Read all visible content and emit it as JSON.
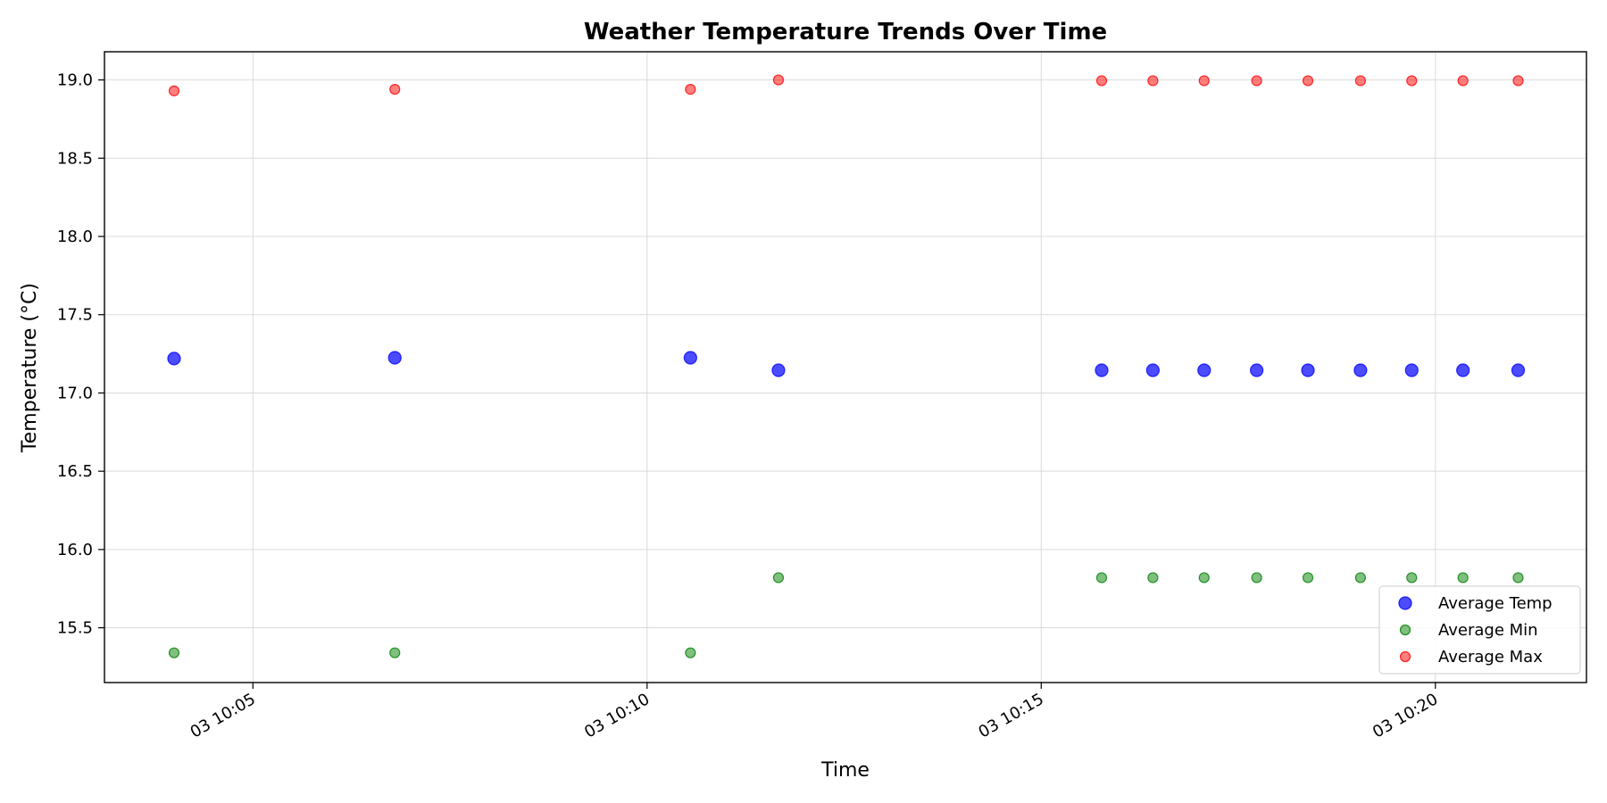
{
  "chart_data": {
    "type": "scatter",
    "title": "Weather Temperature Trends Over Time",
    "xlabel": "Time",
    "ylabel": "Temperature (°C)",
    "x_axis_type": "time",
    "xlim": [
      "2024-01-03T10:03:07",
      "2024-01-03T10:21:55"
    ],
    "ylim": [
      15.15,
      19.18
    ],
    "grid": true,
    "legend_position": "lower right",
    "x_ticks": [
      {
        "value": "2024-01-03T10:05:00",
        "label": "03 10:05"
      },
      {
        "value": "2024-01-03T10:10:00",
        "label": "03 10:10"
      },
      {
        "value": "2024-01-03T10:15:00",
        "label": "03 10:15"
      },
      {
        "value": "2024-01-03T10:20:00",
        "label": "03 10:20"
      }
    ],
    "y_ticks": [
      {
        "value": 15.5,
        "label": "15.5"
      },
      {
        "value": 16.0,
        "label": "16.0"
      },
      {
        "value": 16.5,
        "label": "16.5"
      },
      {
        "value": 17.0,
        "label": "17.0"
      },
      {
        "value": 17.5,
        "label": "17.5"
      },
      {
        "value": 18.0,
        "label": "18.0"
      },
      {
        "value": 18.5,
        "label": "18.5"
      },
      {
        "value": 19.0,
        "label": "19.0"
      }
    ],
    "x": [
      "2024-01-03T10:04:00",
      "2024-01-03T10:06:48",
      "2024-01-03T10:10:33",
      "2024-01-03T10:11:40",
      "2024-01-03T10:15:46",
      "2024-01-03T10:16:25",
      "2024-01-03T10:17:04",
      "2024-01-03T10:17:44",
      "2024-01-03T10:18:23",
      "2024-01-03T10:19:03",
      "2024-01-03T10:19:42",
      "2024-01-03T10:20:21",
      "2024-01-03T10:21:03"
    ],
    "series": [
      {
        "name": "Average Temp",
        "color": "#0000ff",
        "marker_size": "large",
        "values": [
          17.22,
          17.225,
          17.225,
          17.145,
          17.145,
          17.145,
          17.145,
          17.145,
          17.145,
          17.145,
          17.145,
          17.145,
          17.145
        ]
      },
      {
        "name": "Average Min",
        "color": "#008000",
        "marker_size": "small",
        "values": [
          15.34,
          15.34,
          15.34,
          15.82,
          15.82,
          15.82,
          15.82,
          15.82,
          15.82,
          15.82,
          15.82,
          15.82,
          15.82
        ]
      },
      {
        "name": "Average Max",
        "color": "#ff0000",
        "marker_size": "small",
        "values": [
          18.93,
          18.94,
          18.94,
          19.0,
          18.995,
          18.995,
          18.995,
          18.995,
          18.995,
          18.995,
          18.995,
          18.995,
          18.995
        ]
      }
    ]
  }
}
